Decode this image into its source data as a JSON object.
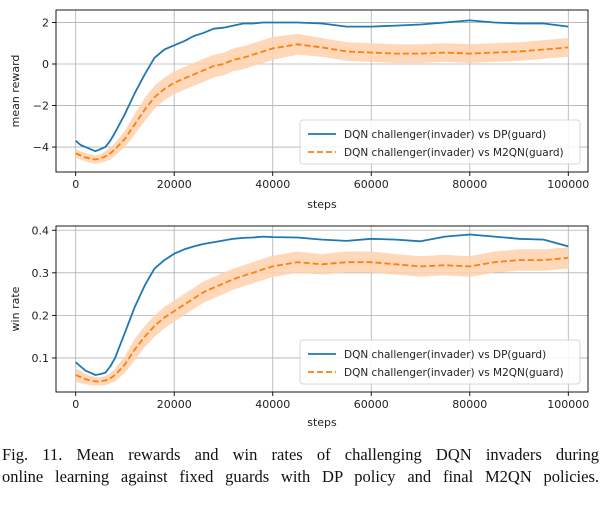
{
  "chart_data": [
    {
      "type": "line",
      "xlabel": "steps",
      "ylabel": "mean reward",
      "xlim": [
        -4000,
        104000
      ],
      "ylim": [
        -5.2,
        2.6
      ],
      "xticks": [
        0,
        20000,
        40000,
        60000,
        80000,
        100000
      ],
      "xtick_labels": [
        "0",
        "20000",
        "40000",
        "60000",
        "80000",
        "100000"
      ],
      "yticks": [
        -4,
        -2,
        0,
        2
      ],
      "ytick_labels": [
        "−4",
        "−2",
        "0",
        "2"
      ],
      "grid": true,
      "legend_position": "lower-right",
      "series": [
        {
          "name": "DQN challenger(invader) vs DP(guard)",
          "color": "#1f77b4",
          "style": "solid",
          "x": [
            0,
            1000,
            2000,
            3000,
            4000,
            5000,
            6000,
            7000,
            8000,
            10000,
            12000,
            14000,
            16000,
            18000,
            20000,
            22000,
            24000,
            26000,
            28000,
            30000,
            32000,
            34000,
            36000,
            38000,
            40000,
            45000,
            50000,
            55000,
            60000,
            65000,
            70000,
            75000,
            80000,
            85000,
            90000,
            95000,
            100000
          ],
          "y": [
            -3.7,
            -3.9,
            -4.0,
            -4.1,
            -4.2,
            -4.1,
            -4.0,
            -3.7,
            -3.3,
            -2.4,
            -1.4,
            -0.5,
            0.3,
            0.7,
            0.9,
            1.1,
            1.35,
            1.5,
            1.7,
            1.75,
            1.85,
            1.95,
            1.95,
            2.0,
            2.0,
            2.0,
            1.95,
            1.8,
            1.8,
            1.85,
            1.9,
            2.0,
            2.1,
            2.0,
            1.95,
            1.95,
            1.8
          ]
        },
        {
          "name": "DQN challenger(invader) vs M2QN(guard)",
          "color": "#ff7f0e",
          "style": "dashed",
          "band_color": "#ffd0ad",
          "x": [
            0,
            1000,
            2000,
            3000,
            4000,
            5000,
            6000,
            7000,
            8000,
            10000,
            12000,
            14000,
            16000,
            18000,
            20000,
            22000,
            24000,
            26000,
            28000,
            30000,
            32000,
            34000,
            36000,
            38000,
            40000,
            45000,
            50000,
            55000,
            60000,
            65000,
            70000,
            75000,
            80000,
            85000,
            90000,
            95000,
            100000
          ],
          "y": [
            -4.3,
            -4.4,
            -4.5,
            -4.55,
            -4.6,
            -4.55,
            -4.45,
            -4.3,
            -4.1,
            -3.6,
            -2.9,
            -2.2,
            -1.6,
            -1.2,
            -0.9,
            -0.7,
            -0.5,
            -0.3,
            -0.1,
            0.0,
            0.2,
            0.3,
            0.45,
            0.6,
            0.75,
            0.95,
            0.8,
            0.6,
            0.55,
            0.5,
            0.5,
            0.55,
            0.5,
            0.55,
            0.6,
            0.7,
            0.8
          ],
          "lower": [
            -4.5,
            -4.6,
            -4.7,
            -4.75,
            -4.8,
            -4.75,
            -4.7,
            -4.6,
            -4.4,
            -4.0,
            -3.4,
            -2.75,
            -2.15,
            -1.75,
            -1.45,
            -1.25,
            -1.05,
            -0.85,
            -0.65,
            -0.55,
            -0.35,
            -0.25,
            -0.1,
            0.05,
            0.2,
            0.45,
            0.35,
            0.15,
            0.1,
            0.05,
            0.05,
            0.1,
            0.05,
            0.1,
            0.15,
            0.25,
            0.35
          ],
          "upper": [
            -4.1,
            -4.2,
            -4.3,
            -4.35,
            -4.4,
            -4.35,
            -4.2,
            -4.0,
            -3.8,
            -3.2,
            -2.4,
            -1.65,
            -1.05,
            -0.65,
            -0.35,
            -0.15,
            0.05,
            0.25,
            0.45,
            0.55,
            0.75,
            0.85,
            1.0,
            1.15,
            1.3,
            1.45,
            1.25,
            1.05,
            1.0,
            0.95,
            0.95,
            1.0,
            0.95,
            1.0,
            1.05,
            1.15,
            1.25
          ]
        }
      ]
    },
    {
      "type": "line",
      "xlabel": "steps",
      "ylabel": "win rate",
      "xlim": [
        -4000,
        104000
      ],
      "ylim": [
        0.02,
        0.41
      ],
      "xticks": [
        0,
        20000,
        40000,
        60000,
        80000,
        100000
      ],
      "xtick_labels": [
        "0",
        "20000",
        "40000",
        "60000",
        "80000",
        "100000"
      ],
      "yticks": [
        0.1,
        0.2,
        0.3,
        0.4
      ],
      "ytick_labels": [
        "0.1",
        "0.2",
        "0.3",
        "0.4"
      ],
      "grid": true,
      "legend_position": "lower-right",
      "series": [
        {
          "name": "DQN challenger(invader) vs DP(guard)",
          "color": "#1f77b4",
          "style": "solid",
          "x": [
            0,
            1000,
            2000,
            3000,
            4000,
            5000,
            6000,
            7000,
            8000,
            10000,
            12000,
            14000,
            16000,
            18000,
            20000,
            22000,
            24000,
            26000,
            28000,
            30000,
            32000,
            34000,
            36000,
            38000,
            40000,
            45000,
            50000,
            55000,
            60000,
            65000,
            70000,
            75000,
            80000,
            85000,
            90000,
            95000,
            100000
          ],
          "y": [
            0.09,
            0.08,
            0.07,
            0.065,
            0.06,
            0.062,
            0.065,
            0.08,
            0.1,
            0.16,
            0.22,
            0.27,
            0.31,
            0.33,
            0.345,
            0.355,
            0.362,
            0.368,
            0.372,
            0.376,
            0.38,
            0.382,
            0.383,
            0.385,
            0.384,
            0.383,
            0.378,
            0.375,
            0.38,
            0.378,
            0.374,
            0.385,
            0.39,
            0.385,
            0.38,
            0.378,
            0.362
          ]
        },
        {
          "name": "DQN challenger(invader) vs M2QN(guard)",
          "color": "#ff7f0e",
          "style": "dashed",
          "band_color": "#ffd0ad",
          "x": [
            0,
            1000,
            2000,
            3000,
            4000,
            5000,
            6000,
            7000,
            8000,
            10000,
            12000,
            14000,
            16000,
            18000,
            20000,
            22000,
            24000,
            26000,
            28000,
            30000,
            32000,
            34000,
            36000,
            38000,
            40000,
            45000,
            50000,
            55000,
            60000,
            65000,
            70000,
            75000,
            80000,
            85000,
            90000,
            95000,
            100000
          ],
          "y": [
            0.06,
            0.055,
            0.05,
            0.047,
            0.045,
            0.045,
            0.047,
            0.052,
            0.06,
            0.085,
            0.12,
            0.15,
            0.175,
            0.195,
            0.21,
            0.225,
            0.24,
            0.255,
            0.265,
            0.275,
            0.285,
            0.293,
            0.3,
            0.308,
            0.315,
            0.325,
            0.32,
            0.325,
            0.325,
            0.32,
            0.315,
            0.318,
            0.315,
            0.325,
            0.33,
            0.33,
            0.335
          ],
          "lower": [
            0.045,
            0.04,
            0.038,
            0.036,
            0.035,
            0.035,
            0.036,
            0.04,
            0.045,
            0.065,
            0.095,
            0.125,
            0.15,
            0.17,
            0.185,
            0.2,
            0.215,
            0.23,
            0.24,
            0.25,
            0.26,
            0.268,
            0.275,
            0.283,
            0.29,
            0.3,
            0.296,
            0.3,
            0.3,
            0.296,
            0.291,
            0.294,
            0.291,
            0.3,
            0.305,
            0.305,
            0.31
          ],
          "upper": [
            0.075,
            0.07,
            0.062,
            0.058,
            0.055,
            0.055,
            0.058,
            0.064,
            0.075,
            0.105,
            0.145,
            0.175,
            0.2,
            0.22,
            0.235,
            0.25,
            0.265,
            0.28,
            0.29,
            0.3,
            0.31,
            0.318,
            0.325,
            0.333,
            0.34,
            0.35,
            0.344,
            0.35,
            0.35,
            0.344,
            0.339,
            0.342,
            0.339,
            0.35,
            0.355,
            0.355,
            0.36
          ]
        }
      ]
    }
  ],
  "caption": {
    "line1": "Fig. 11.   Mean rewards and win rates of challenging DQN invaders during",
    "line2": "online learning against fixed guards with DP policy and final M2QN policies."
  }
}
